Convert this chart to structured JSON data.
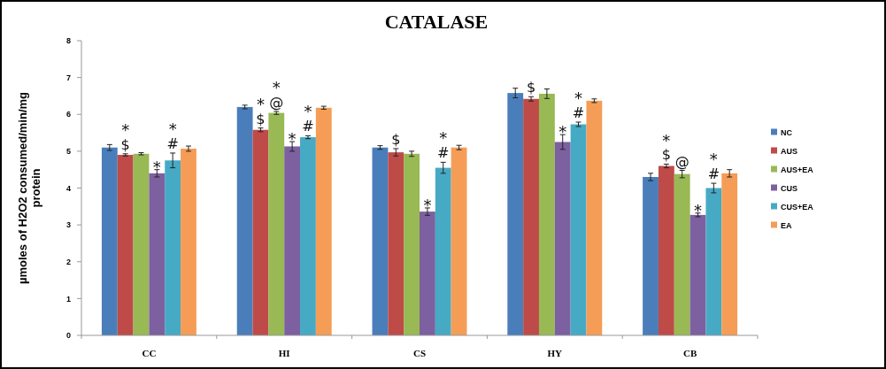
{
  "chart_data": {
    "type": "bar",
    "title": "CATALASE",
    "ylabel": "µmoles of H2O2 consumed/min/mg protein",
    "categories": [
      "CC",
      "HI",
      "CS",
      "HY",
      "CB"
    ],
    "ylim": [
      0,
      8
    ],
    "yticks": [
      0,
      1,
      2,
      3,
      4,
      5,
      6,
      7,
      8
    ],
    "legend": "right",
    "grid": false,
    "series": [
      {
        "name": "NC",
        "color": "#4a7ebb",
        "values": [
          5.1,
          6.2,
          5.1,
          6.58,
          4.3
        ],
        "errors": [
          0.08,
          0.05,
          0.05,
          0.13,
          0.1
        ],
        "value_labels": [
          null,
          null,
          null,
          null,
          null
        ]
      },
      {
        "name": "AUS",
        "color": "#be4b48",
        "values": [
          4.9,
          5.58,
          4.97,
          6.42,
          4.6
        ],
        "errors": [
          0.03,
          0.05,
          0.1,
          0.06,
          0.05
        ],
        "value_labels": [
          "*\n$",
          "*\n$",
          "$",
          "$",
          "*\n$"
        ]
      },
      {
        "name": "AUS+EA",
        "color": "#98b954",
        "values": [
          4.93,
          6.04,
          4.93,
          6.56,
          4.38
        ],
        "errors": [
          0.03,
          0.04,
          0.07,
          0.13,
          0.1
        ],
        "value_labels": [
          null,
          "*\n@",
          null,
          null,
          "@"
        ]
      },
      {
        "name": "CUS",
        "color": "#7d60a0",
        "values": [
          4.4,
          5.13,
          3.36,
          5.25,
          3.27
        ],
        "errors": [
          0.1,
          0.13,
          0.1,
          0.2,
          0.05
        ],
        "value_labels": [
          "*",
          "*",
          "*",
          "*",
          "*"
        ]
      },
      {
        "name": "CUS+EA",
        "color": "#46aac5",
        "values": [
          4.75,
          5.38,
          4.55,
          5.73,
          4.0
        ],
        "errors": [
          0.2,
          0.04,
          0.15,
          0.06,
          0.13
        ],
        "value_labels": [
          "*\n#",
          "*\n#",
          "*\n#",
          "*\n#",
          "*\n#"
        ]
      },
      {
        "name": "EA",
        "color": "#f59d56",
        "values": [
          5.07,
          6.18,
          5.1,
          6.37,
          4.4
        ],
        "errors": [
          0.07,
          0.04,
          0.06,
          0.05,
          0.1
        ],
        "value_labels": [
          null,
          null,
          null,
          null,
          null
        ]
      }
    ]
  }
}
